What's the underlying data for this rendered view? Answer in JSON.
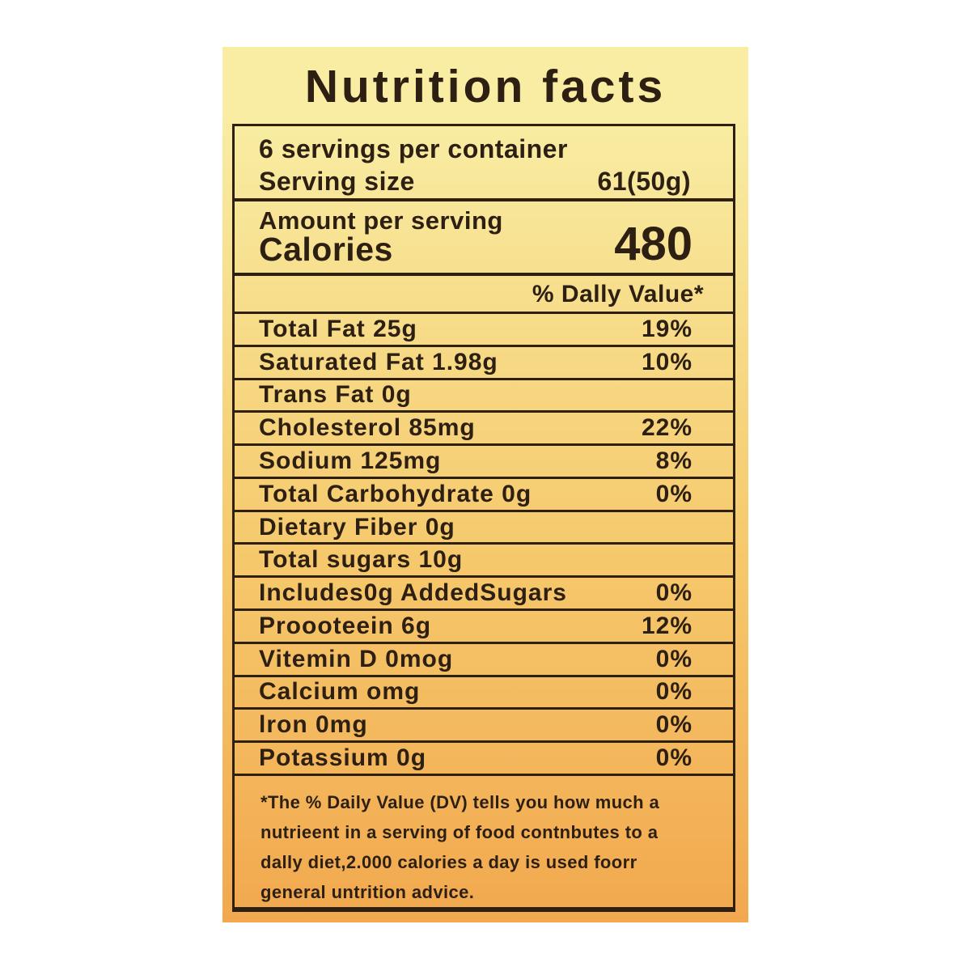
{
  "label": {
    "title": "Nutrition facts",
    "servings_per_container": "6 servings per container",
    "serving_size_label": "Serving size",
    "serving_size_value": "61(50g)",
    "amount_per_serving": "Amount per serving",
    "calories_label": "Calories",
    "calories_value": "480",
    "daily_value_header": "% Dally Value*",
    "rows": [
      {
        "name": "Total Fat 25g",
        "dv": "19%"
      },
      {
        "name": "Saturated Fat 1.98g",
        "dv": "10%"
      },
      {
        "name": "Trans Fat 0g",
        "dv": ""
      },
      {
        "name": "Cholesterol 85mg",
        "dv": "22%"
      },
      {
        "name": "Sodium 125mg",
        "dv": "8%"
      },
      {
        "name": "Total Carbohydrate 0g",
        "dv": "0%"
      },
      {
        "name": "Dietary Fiber 0g",
        "dv": ""
      },
      {
        "name": "Total sugars 10g",
        "dv": ""
      },
      {
        "name": "Includes0g AddedSugars",
        "dv": "0%"
      },
      {
        "name": "Proooteein 6g",
        "dv": "12%"
      },
      {
        "name": "Vitemin D 0mog",
        "dv": "0%"
      },
      {
        "name": "Calcium omg",
        "dv": "0%"
      },
      {
        "name": "lron 0mg",
        "dv": "0%"
      },
      {
        "name": "Potassium 0g",
        "dv": "0%"
      }
    ],
    "footnote_lines": [
      "*The % Daily Value (DV) tells you how much a",
      "nutrieent in a serving of food contnbutes to a",
      "dally diet,2.000 calories a day is used foorr",
      "general untrition advice."
    ]
  },
  "colors": {
    "card_top": "#F8EDA3",
    "card_mid": "#F6CA6E",
    "card_bottom": "#F2A84E",
    "ink": "#2D2013"
  }
}
